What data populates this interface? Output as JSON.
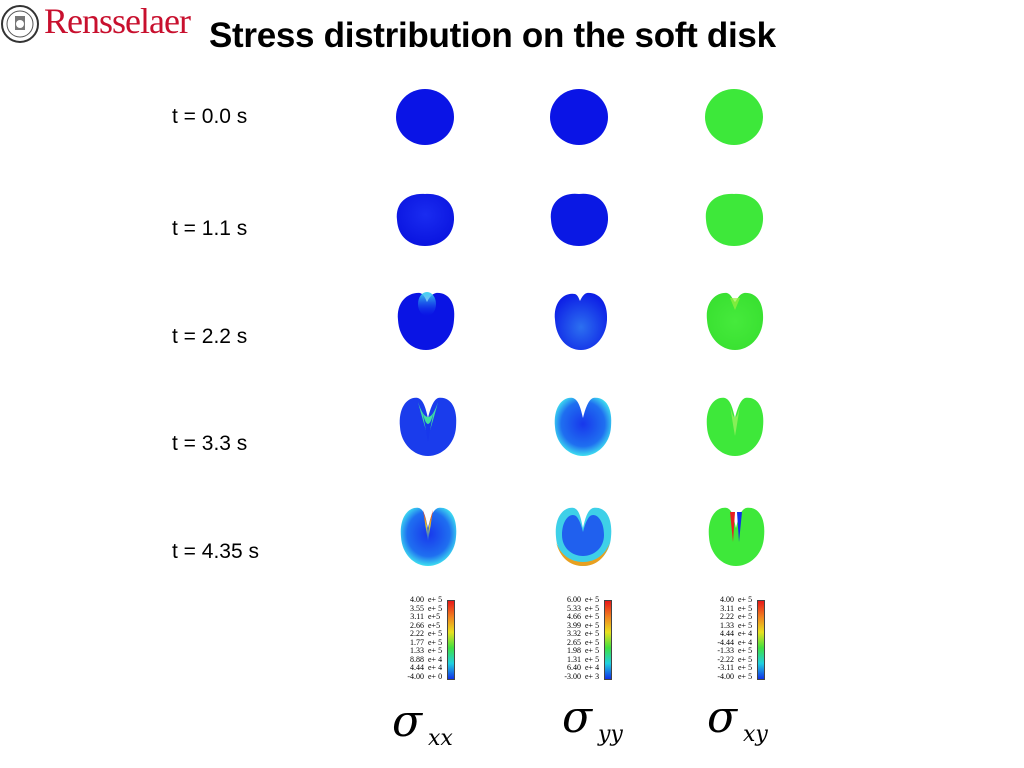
{
  "header": {
    "logo_text": "Rensselaer",
    "title": "Stress distribution on the soft disk"
  },
  "rows": [
    {
      "time": "t = 0.0 s"
    },
    {
      "time": "t = 1.1 s"
    },
    {
      "time": "t = 2.2 s"
    },
    {
      "time": "t = 3.3 s"
    },
    {
      "time": "t = 4.35 s"
    }
  ],
  "legends": [
    {
      "symbol": "σ",
      "subscript": "xx",
      "ticks": [
        [
          "4.00",
          "e+ 5"
        ],
        [
          "3.55",
          "e+ 5"
        ],
        [
          "3.11",
          "e+5"
        ],
        [
          "2.66",
          "e+5"
        ],
        [
          "2.22",
          "e+ 5"
        ],
        [
          "1.77",
          "e+ 5"
        ],
        [
          "1.33",
          "e+ 5"
        ],
        [
          "8.88",
          "e+ 4"
        ],
        [
          "4.44",
          "e+ 4"
        ],
        [
          "-4.00",
          "e+ 0"
        ]
      ]
    },
    {
      "symbol": "σ",
      "subscript": "yy",
      "ticks": [
        [
          "6.00",
          "e+ 5"
        ],
        [
          "5.33",
          "e+ 5"
        ],
        [
          "4.66",
          "e+ 5"
        ],
        [
          "3.99",
          "e+ 5"
        ],
        [
          "3.32",
          "e+ 5"
        ],
        [
          "2.65",
          "e+ 5"
        ],
        [
          "1.98",
          "e+ 5"
        ],
        [
          "1.31",
          "e+ 5"
        ],
        [
          "6.40",
          "e+ 4"
        ],
        [
          "-3.00",
          "e+ 3"
        ]
      ]
    },
    {
      "symbol": "σ",
      "subscript": "xy",
      "ticks": [
        [
          "4.00",
          "e+ 5"
        ],
        [
          "3.11",
          "e+ 5"
        ],
        [
          "2.22",
          "e+ 5"
        ],
        [
          "1.33",
          "e+ 5"
        ],
        [
          "4.44",
          "e+ 4"
        ],
        [
          "-4.44",
          "e+ 4"
        ],
        [
          "-1.33",
          "e+ 5"
        ],
        [
          "-2.22",
          "e+ 5"
        ],
        [
          "-3.11",
          "e+ 5"
        ],
        [
          "-4.00",
          "e+ 5"
        ]
      ]
    }
  ],
  "colors": {
    "logo": "#c8102e",
    "low": "#0a14e6",
    "mid": "#38e83a",
    "high": "#e81818"
  }
}
